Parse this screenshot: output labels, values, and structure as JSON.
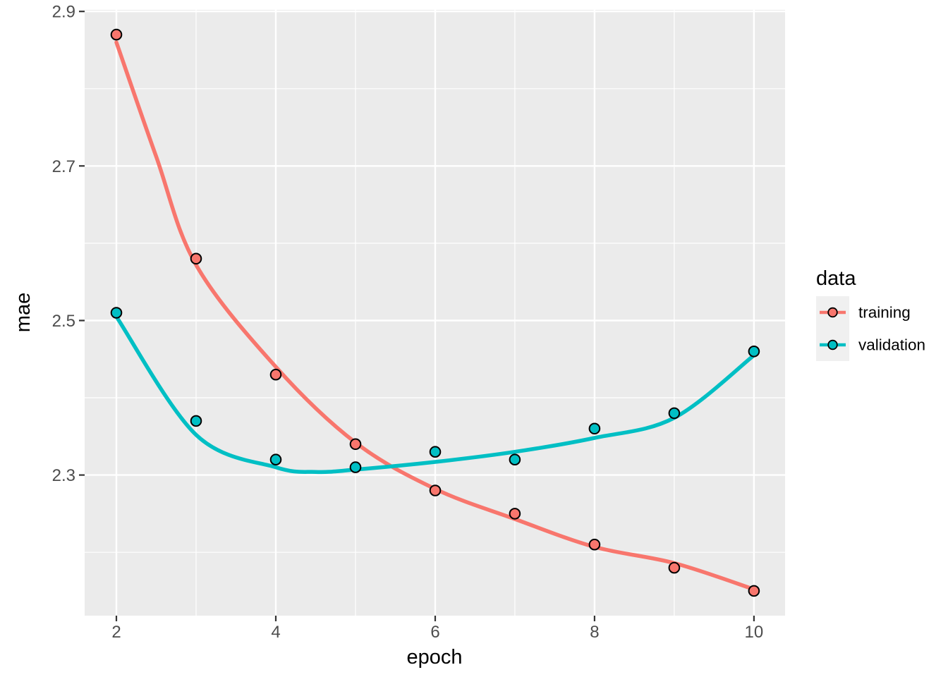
{
  "chart_data": {
    "type": "scatter",
    "title": "",
    "xlabel": "epoch",
    "ylabel": "mae",
    "x": [
      2,
      3,
      4,
      5,
      6,
      7,
      8,
      9,
      10
    ],
    "series": [
      {
        "name": "training",
        "color": "#F8766D",
        "values": [
          2.87,
          2.58,
          2.43,
          2.34,
          2.28,
          2.25,
          2.21,
          2.18,
          2.15
        ],
        "smooth": {
          "x": [
            2,
            2.5,
            3,
            4,
            5,
            6,
            7,
            8,
            9,
            10
          ],
          "y": [
            2.86,
            2.712,
            2.572,
            2.44,
            2.342,
            2.282,
            2.243,
            2.207,
            2.186,
            2.152
          ]
        }
      },
      {
        "name": "validation",
        "color": "#00BFC4",
        "values": [
          2.51,
          2.37,
          2.32,
          2.31,
          2.33,
          2.32,
          2.36,
          2.38,
          2.46
        ],
        "smooth": {
          "x": [
            2,
            3,
            4,
            4.5,
            5,
            6,
            7,
            8,
            9,
            10
          ],
          "y": [
            2.505,
            2.352,
            2.31,
            2.304,
            2.307,
            2.317,
            2.33,
            2.348,
            2.374,
            2.455
          ]
        }
      }
    ],
    "x_ticks": [
      2,
      4,
      6,
      8,
      10
    ],
    "x_tick_labels": [
      "2",
      "4",
      "6",
      "8",
      "10"
    ],
    "x_minor": [
      3,
      5,
      7,
      9
    ],
    "y_ticks": [
      2.3,
      2.5,
      2.7,
      2.9
    ],
    "y_tick_labels": [
      "2.3",
      "2.5",
      "2.7",
      "2.9"
    ],
    "y_minor": [
      2.2,
      2.4,
      2.6,
      2.8
    ],
    "xlim": [
      1.602,
      10.39
    ],
    "ylim": [
      2.118,
      2.902
    ],
    "grid": true,
    "legend": {
      "title": "data",
      "position": "right",
      "entries": [
        {
          "label": "training",
          "color": "#F8766D"
        },
        {
          "label": "validation",
          "color": "#00BFC4"
        }
      ]
    },
    "style": {
      "panel_bg": "#EBEBEB",
      "grid_color": "#FFFFFF",
      "tick_mark_color": "#333333",
      "tick_label_color": "#4D4D4D",
      "axis_title_color": "#000000",
      "point_outline": "#000000",
      "legend_key_bg": "#F0F0F0"
    }
  }
}
